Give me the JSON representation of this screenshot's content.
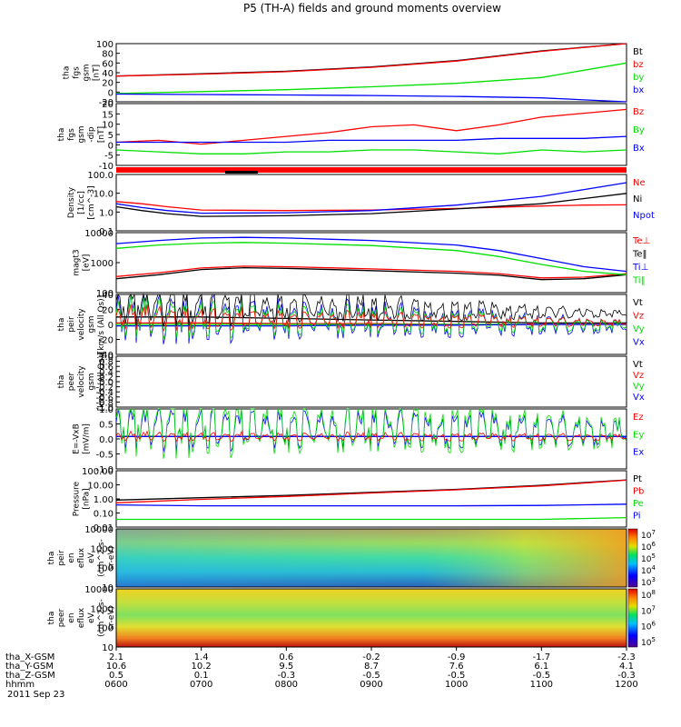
{
  "title": "P5 (TH-A) fields and ground moments overview",
  "colors": {
    "black": "#000000",
    "red": "#ff0000",
    "green": "#00e000",
    "blue": "#0000ff"
  },
  "chart_data": [
    {
      "type": "line",
      "ylabel": [
        "tha",
        "fgs",
        "gsm",
        "[nT]"
      ],
      "ylim": [
        -20,
        100
      ],
      "yticks": [
        "100",
        "80",
        "60",
        "40",
        "20",
        "0",
        "-20"
      ],
      "series": [
        {
          "name": "Bt",
          "color": "black",
          "x": [
            0,
            1,
            2,
            3,
            4,
            5,
            6
          ],
          "y": [
            33,
            38,
            43,
            52,
            65,
            85,
            115
          ]
        },
        {
          "name": "bz",
          "color": "red",
          "x": [
            0,
            1,
            2,
            3,
            4,
            5,
            6
          ],
          "y": [
            33,
            37,
            42,
            51,
            64,
            84,
            114
          ]
        },
        {
          "name": "by",
          "color": "green",
          "x": [
            0,
            1,
            2,
            3,
            4,
            5,
            6
          ],
          "y": [
            -3,
            1,
            5,
            11,
            18,
            30,
            60
          ]
        },
        {
          "name": "bx",
          "color": "blue",
          "x": [
            0,
            1,
            2,
            3,
            4,
            5,
            6
          ],
          "y": [
            -4,
            -5,
            -6,
            -7,
            -9,
            -12,
            -22
          ]
        }
      ]
    },
    {
      "type": "line",
      "ylabel": [
        "tha",
        "fgs",
        "gsm",
        "-dip",
        "[nT]"
      ],
      "ylim": [
        -12,
        20
      ],
      "yticks": [
        "20",
        "15",
        "10",
        "5",
        "0",
        "-5",
        "-10"
      ],
      "series": [
        {
          "name": "Bz",
          "color": "red",
          "x": [
            0,
            0.5,
            1,
            1.5,
            2,
            2.5,
            3,
            3.5,
            4,
            4.5,
            5,
            5.5,
            6
          ],
          "y": [
            0,
            1,
            -1,
            1,
            3,
            5,
            8,
            9,
            6,
            9,
            13,
            15,
            17
          ]
        },
        {
          "name": "By",
          "color": "green",
          "x": [
            0,
            0.5,
            1,
            1.5,
            2,
            2.5,
            3,
            3.5,
            4,
            4.5,
            5,
            5.5,
            6
          ],
          "y": [
            -4,
            -5,
            -6,
            -6,
            -5,
            -5,
            -4,
            -4,
            -5,
            -6,
            -4,
            -5,
            -4
          ]
        },
        {
          "name": "Bx",
          "color": "blue",
          "x": [
            0,
            0.5,
            1,
            1.5,
            2,
            2.5,
            3,
            3.5,
            4,
            4.5,
            5,
            5.5,
            6
          ],
          "y": [
            0,
            0,
            0,
            0,
            0,
            1,
            1,
            1,
            1,
            2,
            2,
            2,
            3
          ]
        }
      ]
    },
    {
      "type": "line",
      "ylabel": [
        "Density",
        "[1/cc]",
        "[cm^-3]"
      ],
      "scale": "log",
      "ylim": [
        0.08,
        150
      ],
      "yticks": [
        "100.0",
        "10.0",
        "1.0",
        "0.1"
      ],
      "series": [
        {
          "name": "Ne",
          "color": "red",
          "x": [
            0,
            0.3,
            0.6,
            1,
            2,
            3,
            4,
            5,
            5.5,
            6
          ],
          "y": [
            4,
            3,
            2,
            1.3,
            1.2,
            1.3,
            1.6,
            2.2,
            2.5,
            2.6
          ]
        },
        {
          "name": "Ni",
          "color": "black",
          "x": [
            0,
            0.3,
            0.6,
            1,
            2,
            3,
            4,
            5,
            5.5,
            6
          ],
          "y": [
            2,
            1.2,
            0.8,
            0.55,
            0.6,
            0.8,
            1.5,
            3,
            6,
            12
          ]
        },
        {
          "name": "Npot",
          "color": "blue",
          "x": [
            0,
            0.3,
            0.6,
            1,
            2,
            3,
            4,
            5,
            5.5,
            6
          ],
          "y": [
            3,
            1.8,
            1.2,
            0.85,
            0.9,
            1.2,
            2.5,
            8,
            20,
            50
          ]
        }
      ]
    },
    {
      "type": "line",
      "ylabel": [
        "magt3",
        "[eV]"
      ],
      "scale": "log",
      "ylim": [
        30,
        12000
      ],
      "yticks": [
        "10000",
        "1000",
        "100"
      ],
      "series": [
        {
          "name": "Te⊥",
          "color": "red",
          "x": [
            0,
            0.5,
            1,
            1.5,
            2,
            3,
            4,
            4.5,
            5,
            5.5,
            6
          ],
          "y": [
            150,
            220,
            350,
            420,
            400,
            320,
            250,
            200,
            130,
            140,
            200
          ]
        },
        {
          "name": "Te‖",
          "color": "black",
          "x": [
            0,
            0.5,
            1,
            1.5,
            2,
            3,
            4,
            4.5,
            5,
            5.5,
            6
          ],
          "y": [
            120,
            180,
            300,
            360,
            340,
            270,
            210,
            170,
            110,
            120,
            180
          ]
        },
        {
          "name": "Ti⊥",
          "color": "blue",
          "x": [
            0,
            0.5,
            1,
            1.5,
            2,
            3,
            4,
            4.5,
            5,
            5.5,
            6
          ],
          "y": [
            4000,
            5500,
            7000,
            7500,
            7000,
            5500,
            3500,
            2000,
            900,
            400,
            250
          ]
        },
        {
          "name": "Ti‖",
          "color": "green",
          "x": [
            0,
            0.5,
            1,
            1.5,
            2,
            3,
            4,
            4.5,
            5,
            5.5,
            6
          ],
          "y": [
            2500,
            3500,
            4200,
            4500,
            4200,
            3300,
            2000,
            1100,
            500,
            250,
            180
          ]
        }
      ]
    },
    {
      "type": "line",
      "ylabel": [
        "tha",
        "peir",
        "velocity",
        "gsm",
        "[km/s (All Qs)]"
      ],
      "ylim": [
        -40,
        40
      ],
      "yticks": [
        "40",
        "20",
        "0",
        "-20",
        "-40"
      ],
      "series": [
        {
          "name": "Vt",
          "color": "black",
          "x": [
            0,
            1,
            2,
            3,
            4,
            5,
            6
          ],
          "y": [
            10,
            10,
            8,
            6,
            4,
            2,
            2
          ]
        },
        {
          "name": "Vz",
          "color": "red",
          "x": [
            0,
            1,
            2,
            3,
            4,
            5,
            6
          ],
          "y": [
            2,
            2,
            1,
            1,
            0,
            0,
            0
          ]
        },
        {
          "name": "Vy",
          "color": "green",
          "x": [
            0,
            1,
            2,
            3,
            4,
            5,
            6
          ],
          "y": [
            0,
            0,
            0,
            0,
            0,
            0,
            0
          ]
        },
        {
          "name": "Vx",
          "color": "blue",
          "x": [
            0,
            1,
            2,
            3,
            4,
            5,
            6
          ],
          "y": [
            -2,
            -2,
            -2,
            -1,
            -1,
            0,
            0
          ]
        }
      ]
    },
    {
      "type": "line",
      "ylabel": [
        "tha",
        "peer",
        "velocity",
        "gsm",
        "[km/s (All Qs)]"
      ],
      "ylim": [
        -1,
        1
      ],
      "yticks": [
        "1.0",
        "0.8",
        "0.6",
        "0.4",
        "0.2",
        "0.0",
        "-0.2",
        "-0.4",
        "-0.6",
        "-0.8",
        "-1.0"
      ],
      "series": [
        {
          "name": "Vt",
          "color": "black",
          "x": [],
          "y": []
        },
        {
          "name": "Vz",
          "color": "red",
          "x": [],
          "y": []
        },
        {
          "name": "Vy",
          "color": "green",
          "x": [],
          "y": []
        },
        {
          "name": "Vx",
          "color": "blue",
          "x": [],
          "y": []
        }
      ]
    },
    {
      "type": "line",
      "ylabel": [
        "E=-VxB",
        "[mV/m]"
      ],
      "ylim": [
        -1.3,
        1.1
      ],
      "yticks": [
        "1.0",
        "0.5",
        "0.0",
        "-0.5",
        "-1.0"
      ],
      "series": [
        {
          "name": "Ez",
          "color": "red",
          "x": [
            0,
            6
          ],
          "y": [
            0,
            0
          ]
        },
        {
          "name": "Ey",
          "color": "green",
          "x": [
            0,
            6
          ],
          "y": [
            0,
            0
          ]
        },
        {
          "name": "Ex",
          "color": "blue",
          "x": [
            0,
            6
          ],
          "y": [
            0,
            0
          ]
        }
      ]
    },
    {
      "type": "line",
      "ylabel": [
        "Pressure",
        "[nPa]"
      ],
      "scale": "log",
      "ylim": [
        0.008,
        120
      ],
      "yticks": [
        "100.00",
        "10.00",
        "1.00",
        "0.10",
        "0.01"
      ],
      "series": [
        {
          "name": "Pt",
          "color": "black",
          "x": [
            0,
            1,
            2,
            3,
            4,
            5,
            6
          ],
          "y": [
            0.8,
            1.2,
            1.8,
            3,
            5,
            10,
            25
          ]
        },
        {
          "name": "Pb",
          "color": "red",
          "x": [
            0,
            1,
            2,
            3,
            4,
            5,
            6
          ],
          "y": [
            0.5,
            0.9,
            1.5,
            2.7,
            4.6,
            9,
            24
          ]
        },
        {
          "name": "Pe",
          "color": "green",
          "x": [
            0,
            1,
            2,
            3,
            4,
            5,
            6
          ],
          "y": [
            0.03,
            0.03,
            0.03,
            0.03,
            0.03,
            0.03,
            0.04
          ]
        },
        {
          "name": "Pi",
          "color": "blue",
          "x": [
            0,
            1,
            2,
            3,
            4,
            5,
            6
          ],
          "y": [
            0.35,
            0.3,
            0.3,
            0.3,
            0.3,
            0.32,
            0.4
          ]
        }
      ]
    },
    {
      "type": "heatmap",
      "ylabel": [
        "tha",
        "peir",
        "en",
        "eflux",
        "eV",
        "(cm^2-s-",
        "sr-eV)"
      ],
      "yticks": [
        "10000",
        "1000",
        "100",
        "10"
      ],
      "colorbar_ticks": [
        "10^7",
        "10^6",
        "10^5",
        "10^4",
        "10^3"
      ]
    },
    {
      "type": "heatmap",
      "ylabel": [
        "tha",
        "peer",
        "en",
        "eflux",
        "eV",
        "(cm^2-s-",
        "sr-eV)"
      ],
      "yticks": [
        "10000",
        "1000",
        "100",
        "10"
      ],
      "colorbar_ticks": [
        "10^8",
        "10^7",
        "10^6",
        "10^5"
      ]
    }
  ],
  "xaxis": {
    "rows": [
      {
        "label": "tha_X-GSM",
        "values": [
          "2.1",
          "1.4",
          "0.6",
          "-0.2",
          "-0.9",
          "-1.7",
          "-2.3"
        ]
      },
      {
        "label": "tha_Y-GSM",
        "values": [
          "10.6",
          "10.2",
          "9.5",
          "8.7",
          "7.6",
          "6.1",
          "4.1"
        ]
      },
      {
        "label": "tha_Z-GSM",
        "values": [
          "0.5",
          "0.1",
          "-0.3",
          "-0.5",
          "-0.5",
          "-0.5",
          "-0.3"
        ]
      },
      {
        "label": "hhmm",
        "values": [
          "0600",
          "0700",
          "0800",
          "0900",
          "1000",
          "1100",
          "1200"
        ]
      }
    ],
    "date": "2011 Sep 23"
  }
}
